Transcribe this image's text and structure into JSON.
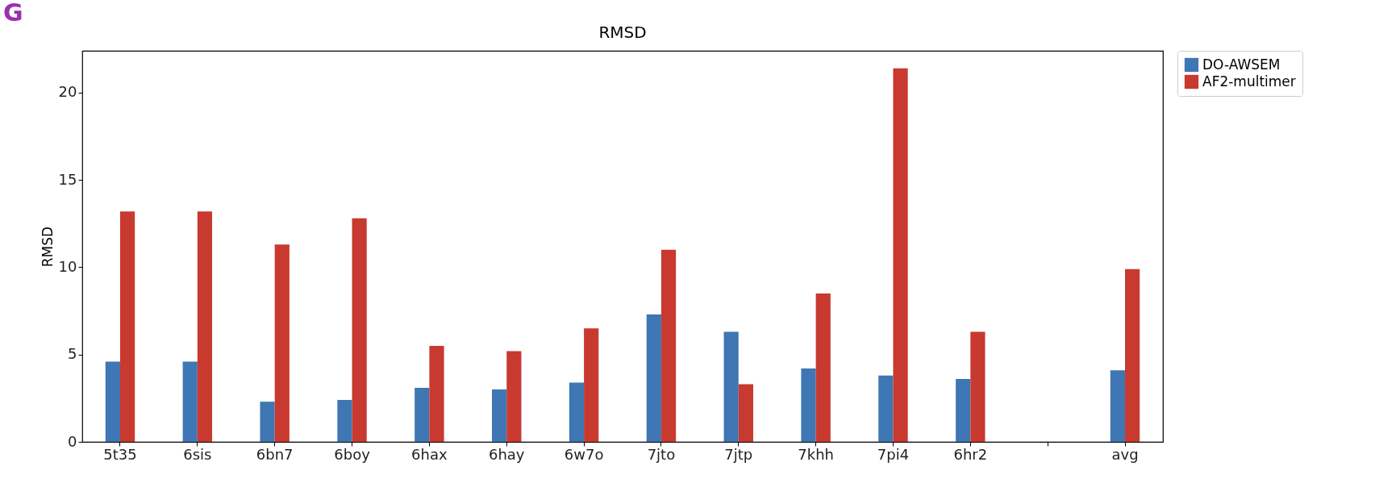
{
  "chart_data": {
    "type": "bar",
    "title": "RMSD",
    "ylabel": "RMSD",
    "categories": [
      "5t35",
      "6sis",
      "6bn7",
      "6boy",
      "6hax",
      "6hay",
      "6w7o",
      "7jto",
      "7jtp",
      "7khh",
      "7pi4",
      "6hr2",
      null,
      "avg"
    ],
    "series": [
      {
        "name": "DO-AWSEM",
        "color": "#3f76b4",
        "values": [
          4.6,
          4.6,
          2.3,
          2.4,
          3.1,
          3.0,
          3.4,
          7.3,
          6.3,
          4.2,
          3.8,
          3.6,
          null,
          4.1
        ]
      },
      {
        "name": "AF2-multimer",
        "color": "#c83a2f",
        "values": [
          13.2,
          13.2,
          11.3,
          12.8,
          5.5,
          5.2,
          6.5,
          11.0,
          3.3,
          8.5,
          21.4,
          6.3,
          null,
          9.9
        ]
      }
    ],
    "ylim": [
      0,
      22.4
    ],
    "yticks": [
      0,
      5,
      10,
      15,
      20
    ],
    "grid": false,
    "legend": "top right",
    "annotations": [
      "G"
    ]
  }
}
